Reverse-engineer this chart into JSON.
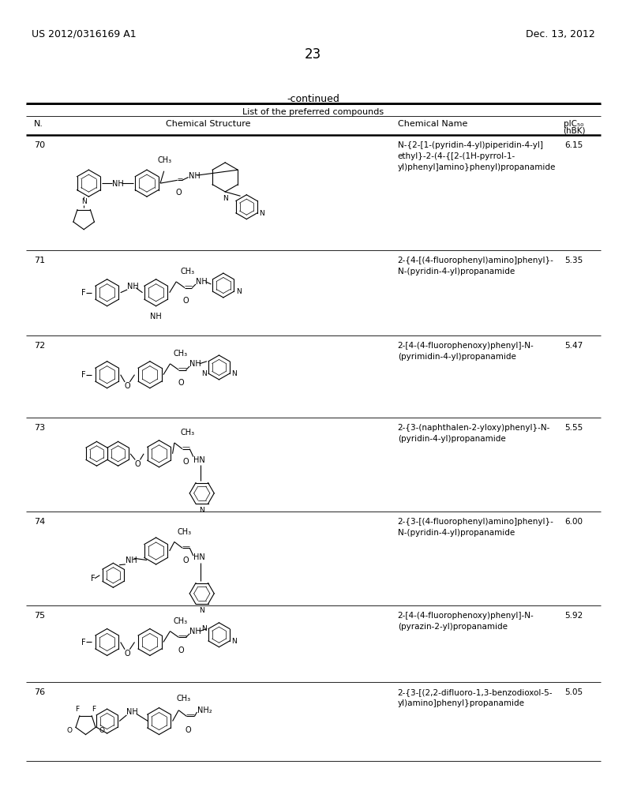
{
  "page_number": "23",
  "patent_number": "US 2012/0316169 A1",
  "patent_date": "Dec. 13, 2012",
  "continued_label": "-continued",
  "table_title": "List of the preferred compounds",
  "compounds": [
    {
      "number": "70",
      "chemical_name": "N-{2-[1-(pyridin-4-yl)piperidin-4-yl]\nethyl}-2-(4-{[2-(1H-pyrrol-1-\nyl)phenyl]amino}phenyl)propanamide",
      "pic50": "6.15"
    },
    {
      "number": "71",
      "chemical_name": "2-{4-[(4-fluorophenyl)amino]phenyl}-\nN-(pyridin-4-yl)propanamide",
      "pic50": "5.35"
    },
    {
      "number": "72",
      "chemical_name": "2-[4-(4-fluorophenoxy)phenyl]-N-\n(pyrimidin-4-yl)propanamide",
      "pic50": "5.47"
    },
    {
      "number": "73",
      "chemical_name": "2-{3-(naphthalen-2-yloxy)phenyl}-N-\n(pyridin-4-yl)propanamide",
      "pic50": "5.55"
    },
    {
      "number": "74",
      "chemical_name": "2-{3-[(4-fluorophenyl)amino]phenyl}-\nN-(pyridin-4-yl)propanamide",
      "pic50": "6.00"
    },
    {
      "number": "75",
      "chemical_name": "2-[4-(4-fluorophenoxy)phenyl]-N-\n(pyrazin-2-yl)propanamide",
      "pic50": "5.92"
    },
    {
      "number": "76",
      "chemical_name": "2-{3-[(2,2-difluoro-1,3-benzodioxol-5-\nyl)amino]phenyl}propanamide",
      "pic50": "5.05"
    }
  ],
  "bg_color": "#ffffff"
}
